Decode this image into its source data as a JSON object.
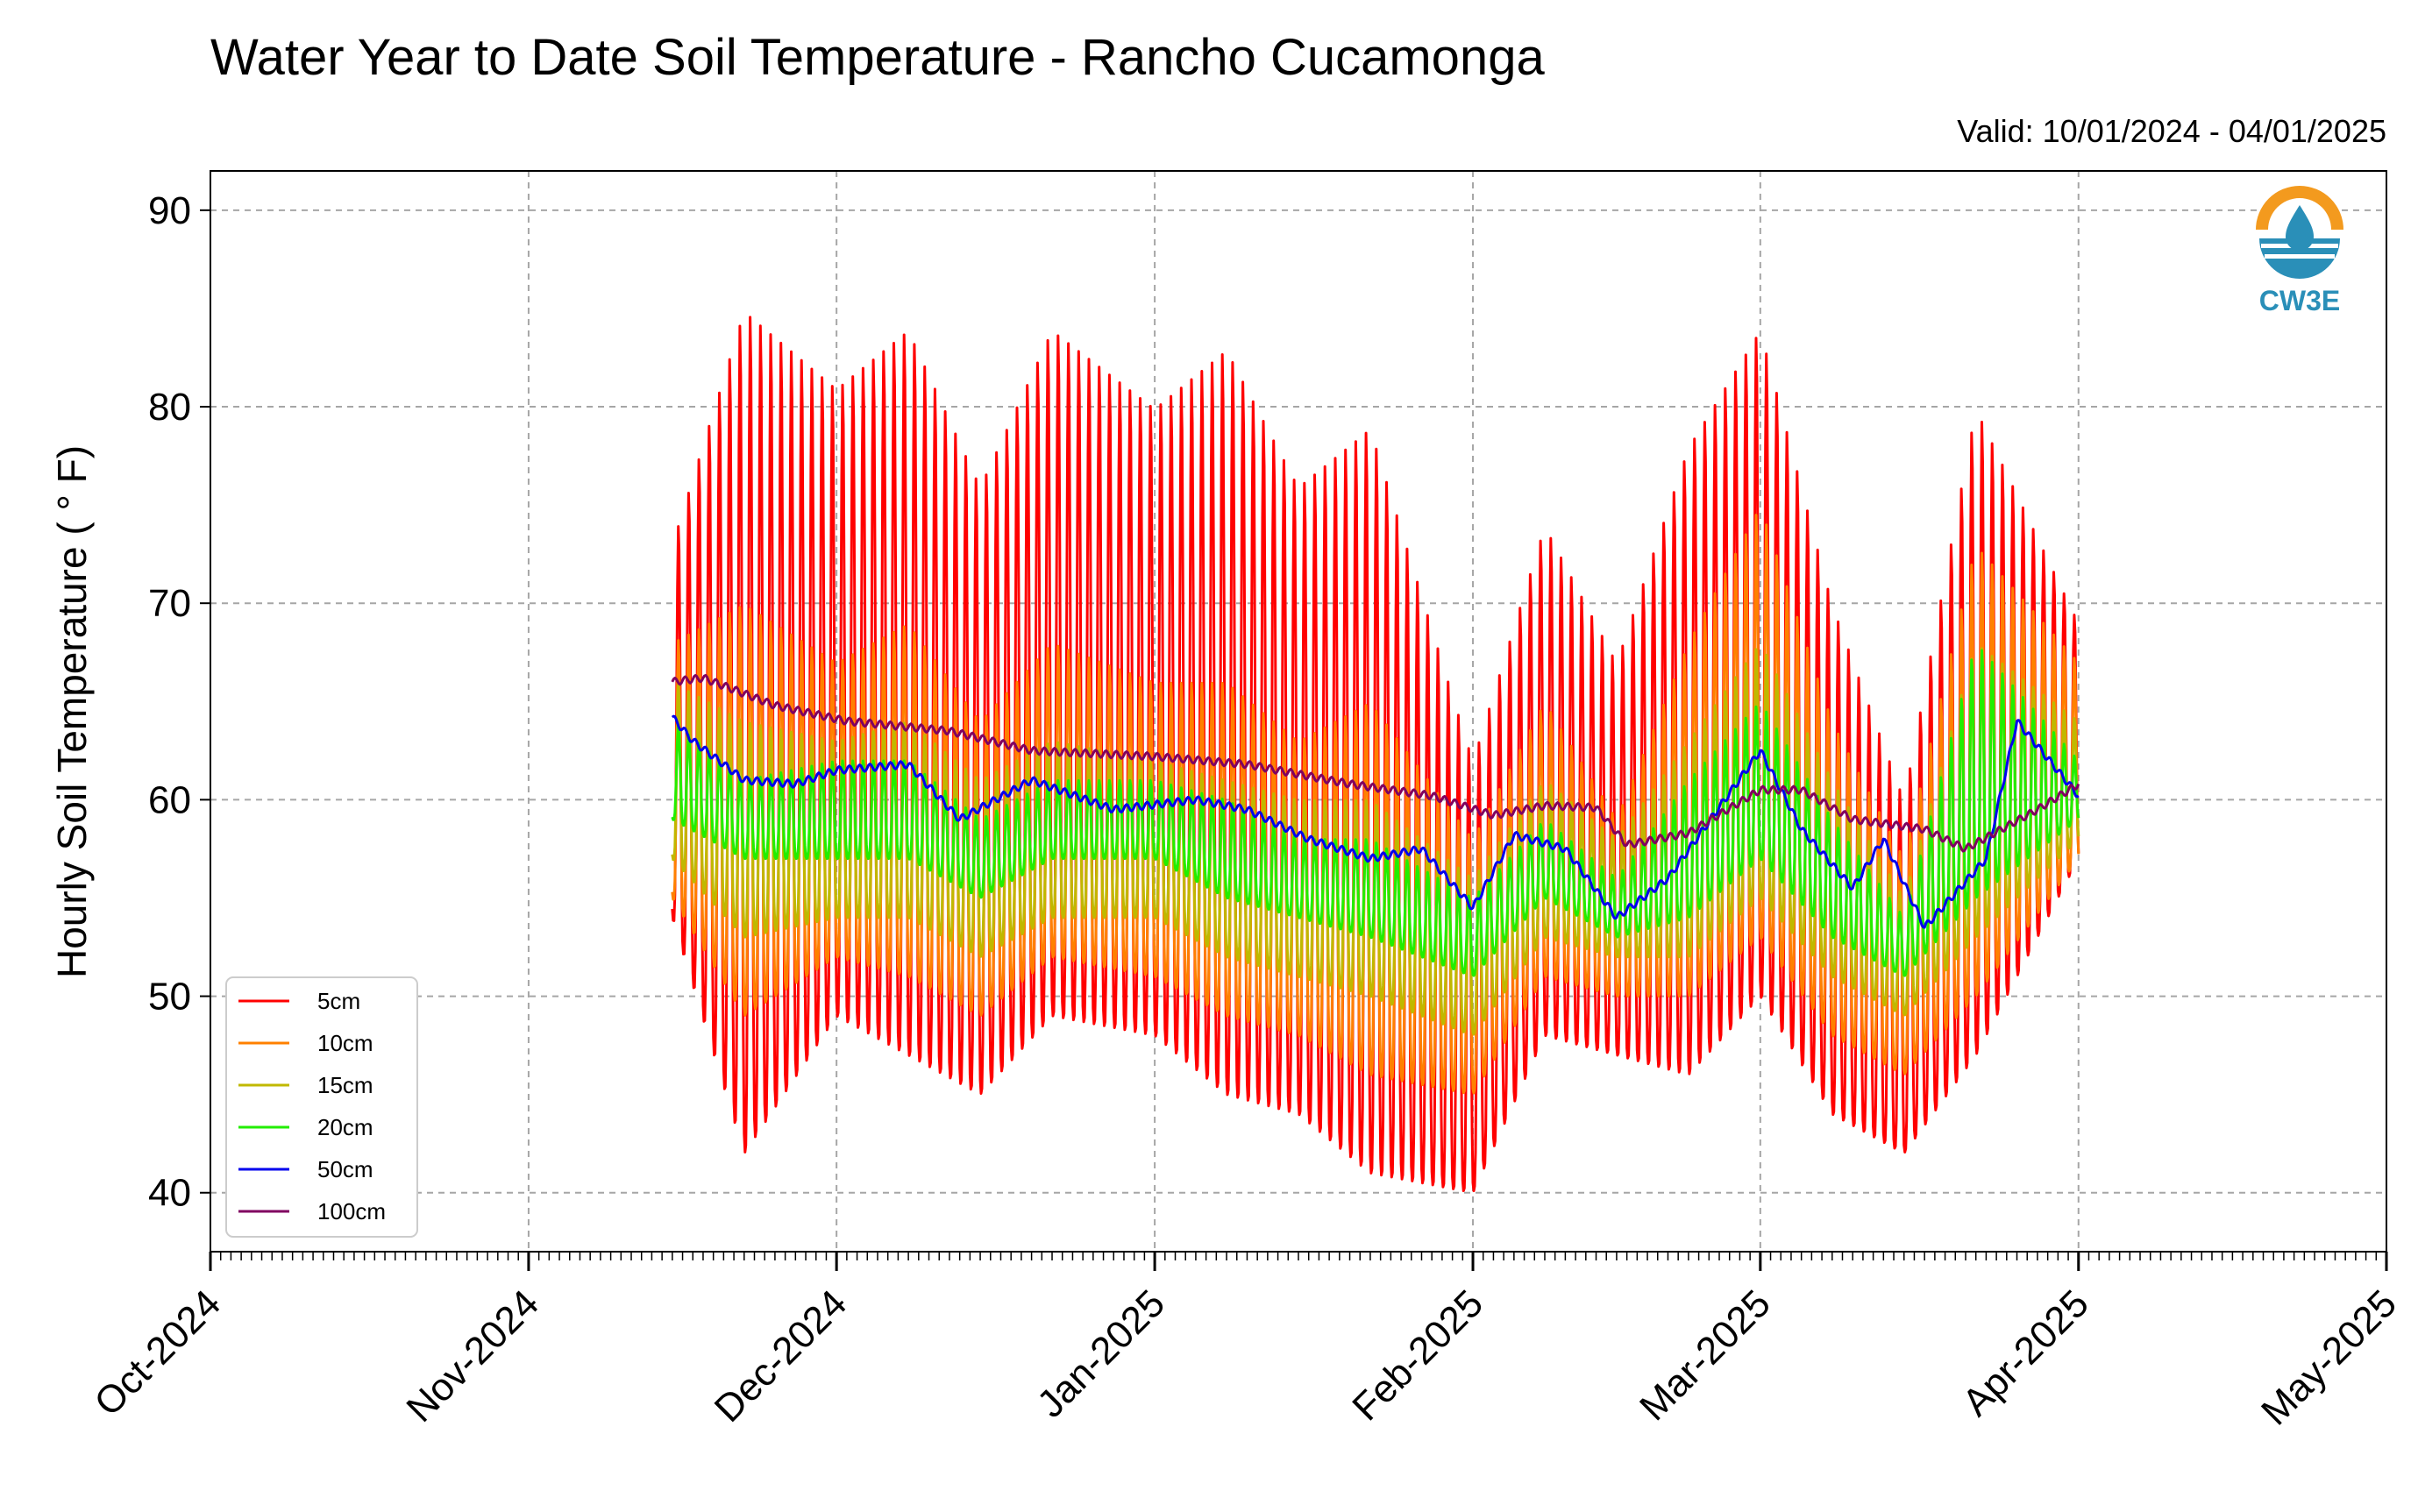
{
  "chart_data": {
    "type": "line",
    "title": "Water Year to Date Soil Temperature - Rancho Cucamonga",
    "subtitle": "Valid: 10/01/2024 - 04/01/2025",
    "ylabel": "Hourly Soil Temperature ( ° F)",
    "xlabel": "",
    "ylim": [
      37,
      92
    ],
    "yticks": [
      40,
      50,
      60,
      70,
      80,
      90
    ],
    "xlim": [
      "2024-10-01",
      "2025-05-01"
    ],
    "xticks": [
      {
        "date": "2024-10-01",
        "label": "Oct-2024"
      },
      {
        "date": "2024-11-01",
        "label": "Nov-2024"
      },
      {
        "date": "2024-12-01",
        "label": "Dec-2024"
      },
      {
        "date": "2025-01-01",
        "label": "Jan-2025"
      },
      {
        "date": "2025-02-01",
        "label": "Feb-2025"
      },
      {
        "date": "2025-03-01",
        "label": "Mar-2025"
      },
      {
        "date": "2025-04-01",
        "label": "Apr-2025"
      },
      {
        "date": "2025-05-01",
        "label": "May-2025"
      }
    ],
    "grid": true,
    "legend_position": "lower-left",
    "logo_text": "CW3E",
    "series": [
      {
        "name": "5cm",
        "color": "#ff0000",
        "x": [
          "2024-11-15",
          "2024-11-22",
          "2024-12-01",
          "2024-12-08",
          "2024-12-15",
          "2024-12-22",
          "2025-01-01",
          "2025-01-08",
          "2025-01-15",
          "2025-01-22",
          "2025-02-01",
          "2025-02-08",
          "2025-02-15",
          "2025-02-22",
          "2025-03-01",
          "2025-03-08",
          "2025-03-15",
          "2025-03-22",
          "2025-04-01"
        ],
        "max": [
          73,
          85,
          81,
          84,
          76,
          84,
          80,
          83,
          76,
          79,
          62,
          74,
          67,
          78,
          84,
          70,
          60,
          80,
          69
        ],
        "min": [
          54,
          42,
          49,
          47,
          45,
          49,
          48,
          45,
          44,
          41,
          40,
          48,
          47,
          46,
          50,
          44,
          42,
          47,
          57
        ]
      },
      {
        "name": "10cm",
        "color": "#ff8000",
        "x": [
          "2024-11-15",
          "2024-11-22",
          "2024-12-01",
          "2024-12-08",
          "2024-12-15",
          "2024-12-22",
          "2025-01-01",
          "2025-01-08",
          "2025-01-15",
          "2025-01-22",
          "2025-02-01",
          "2025-02-08",
          "2025-02-15",
          "2025-02-22",
          "2025-03-01",
          "2025-03-08",
          "2025-03-15",
          "2025-03-22",
          "2025-04-01"
        ],
        "max": [
          68,
          70,
          67,
          69,
          64,
          68,
          66,
          66,
          63,
          65,
          58,
          65,
          59,
          68,
          75,
          64,
          57,
          73,
          67
        ],
        "min": [
          55,
          49,
          52,
          51,
          49,
          52,
          51,
          49,
          48,
          46,
          45,
          51,
          50,
          50,
          53,
          48,
          46,
          50,
          57
        ]
      },
      {
        "name": "15cm",
        "color": "#c0b800",
        "x": [
          "2024-11-15",
          "2024-11-22",
          "2024-12-01",
          "2024-12-08",
          "2024-12-15",
          "2024-12-22",
          "2025-01-01",
          "2025-01-08",
          "2025-01-15",
          "2025-01-22",
          "2025-02-01",
          "2025-02-08",
          "2025-02-15",
          "2025-02-22",
          "2025-03-01",
          "2025-03-08",
          "2025-03-15",
          "2025-03-22",
          "2025-04-01"
        ],
        "max": [
          66,
          64,
          63,
          64,
          61,
          63,
          62,
          61,
          60,
          60,
          56,
          61,
          58,
          63,
          68,
          61,
          55,
          68,
          64
        ],
        "min": [
          57,
          53,
          54,
          54,
          52,
          54,
          54,
          52,
          51,
          50,
          48,
          53,
          52,
          52,
          55,
          51,
          49,
          53,
          58
        ]
      },
      {
        "name": "20cm",
        "color": "#22ee00",
        "x": [
          "2024-11-15",
          "2024-11-22",
          "2024-12-01",
          "2024-12-08",
          "2024-12-15",
          "2024-12-22",
          "2025-01-01",
          "2025-01-08",
          "2025-01-15",
          "2025-01-22",
          "2025-02-01",
          "2025-02-08",
          "2025-02-15",
          "2025-02-22",
          "2025-03-01",
          "2025-03-08",
          "2025-03-15",
          "2025-03-22",
          "2025-04-01"
        ],
        "max": [
          64,
          61,
          62,
          62,
          59,
          61,
          61,
          60,
          58,
          58,
          55,
          59,
          56,
          61,
          65,
          59,
          54,
          68,
          62
        ],
        "min": [
          59,
          57,
          57,
          57,
          55,
          57,
          57,
          55,
          54,
          53,
          51,
          55,
          53,
          54,
          57,
          53,
          51,
          55,
          59
        ]
      },
      {
        "name": "50cm",
        "color": "#0000ee",
        "x": [
          "2024-11-15",
          "2024-11-17",
          "2024-11-22",
          "2024-11-27",
          "2024-12-01",
          "2024-12-08",
          "2024-12-13",
          "2024-12-20",
          "2024-12-28",
          "2025-01-05",
          "2025-01-10",
          "2025-01-16",
          "2025-01-22",
          "2025-01-27",
          "2025-02-01",
          "2025-02-05",
          "2025-02-10",
          "2025-02-15",
          "2025-02-20",
          "2025-03-01",
          "2025-03-05",
          "2025-03-10",
          "2025-03-13",
          "2025-03-17",
          "2025-03-23",
          "2025-03-26",
          "2025-04-01"
        ],
        "values": [
          64.2,
          63.0,
          61.0,
          60.8,
          61.5,
          61.8,
          59.0,
          61.0,
          59.5,
          60.0,
          59.5,
          58.0,
          57.0,
          57.5,
          54.5,
          58.2,
          57.5,
          54.0,
          56.0,
          62.5,
          58.5,
          55.5,
          58.0,
          53.5,
          57.0,
          64.0,
          60.2
        ]
      },
      {
        "name": "100cm",
        "color": "#800060",
        "x": [
          "2024-11-15",
          "2024-11-18",
          "2024-11-25",
          "2024-12-02",
          "2024-12-12",
          "2024-12-20",
          "2025-01-01",
          "2025-01-10",
          "2025-01-20",
          "2025-01-28",
          "2025-02-03",
          "2025-02-08",
          "2025-02-13",
          "2025-02-16",
          "2025-02-22",
          "2025-03-01",
          "2025-03-05",
          "2025-03-10",
          "2025-03-17",
          "2025-03-21",
          "2025-03-28",
          "2025-04-01"
        ],
        "values": [
          66.0,
          66.2,
          64.8,
          64.0,
          63.5,
          62.5,
          62.2,
          61.8,
          60.8,
          60.2,
          59.2,
          59.7,
          59.6,
          57.7,
          58.3,
          60.5,
          60.5,
          59.0,
          58.5,
          57.5,
          59.5,
          60.8
        ]
      }
    ]
  }
}
